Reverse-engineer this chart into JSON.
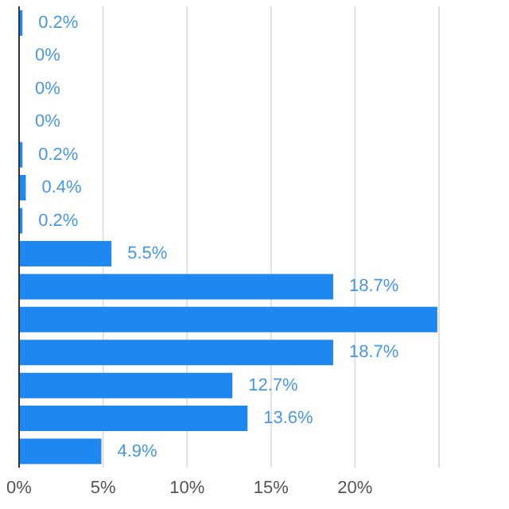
{
  "chart_data": {
    "type": "bar",
    "orientation": "horizontal",
    "categories": [
      null,
      null,
      null,
      null,
      null,
      null,
      null,
      null,
      null,
      null,
      null,
      null,
      null,
      null
    ],
    "values": [
      0.2,
      0,
      0,
      0,
      0.2,
      0.4,
      0.2,
      5.5,
      18.7,
      24.9,
      18.7,
      12.7,
      13.6,
      4.9
    ],
    "value_labels": [
      "0.2%",
      "0%",
      "0%",
      "0%",
      "0.2%",
      "0.4%",
      "0.2%",
      "5.5%",
      "18.7%",
      null,
      "18.7%",
      "12.7%",
      "13.6%",
      "4.9%"
    ],
    "color": "#1e88f0",
    "xlim": [
      0,
      25
    ],
    "xticks": [
      {
        "value": 0,
        "label": "0%"
      },
      {
        "value": 5,
        "label": "5%"
      },
      {
        "value": 10,
        "label": "10%"
      },
      {
        "value": 15,
        "label": "15%"
      },
      {
        "value": 20,
        "label": "20%"
      }
    ],
    "grid": "x",
    "legend": false
  }
}
